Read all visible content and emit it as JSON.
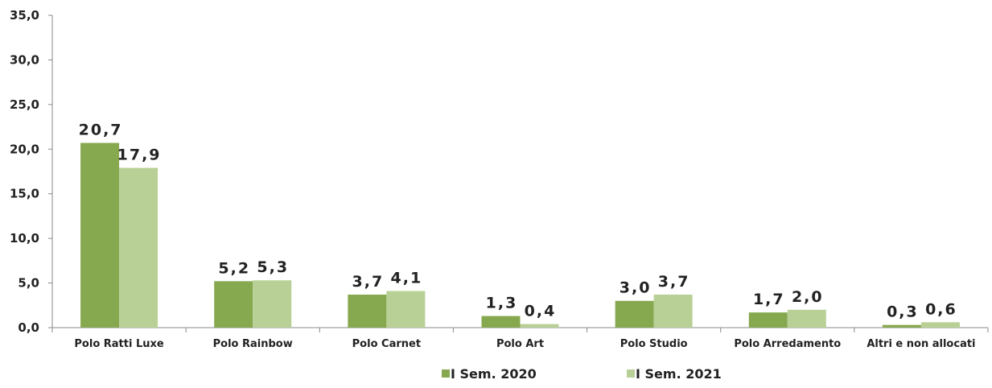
{
  "chart_data": {
    "type": "bar",
    "categories": [
      "Polo Ratti Luxe",
      "Polo Rainbow",
      "Polo Carnet",
      "Polo Art",
      "Polo Studio",
      "Polo Arredamento",
      "Altri e non allocati"
    ],
    "series": [
      {
        "name": "I Sem. 2020",
        "color": "#86a84f",
        "values": [
          20.7,
          5.2,
          3.7,
          1.3,
          3.0,
          1.7,
          0.3
        ],
        "labels": [
          "20,7",
          "5,2",
          "3,7",
          "1,3",
          "3,0",
          "1,7",
          "0,3"
        ]
      },
      {
        "name": "I Sem. 2021",
        "color": "#b8d096",
        "values": [
          17.9,
          5.3,
          4.1,
          0.4,
          3.7,
          2.0,
          0.6
        ],
        "labels": [
          "17,9",
          "5,3",
          "4,1",
          "0,4",
          "3,7",
          "2,0",
          "0,6"
        ]
      }
    ],
    "yticks": [
      "0,0",
      "5,0",
      "10,0",
      "15,0",
      "20,0",
      "25,0",
      "30,0",
      "35,0"
    ],
    "ylim": [
      0,
      35
    ],
    "title": "",
    "xlabel": "",
    "ylabel": "",
    "grid": false,
    "legend_position": "bottom-center"
  }
}
